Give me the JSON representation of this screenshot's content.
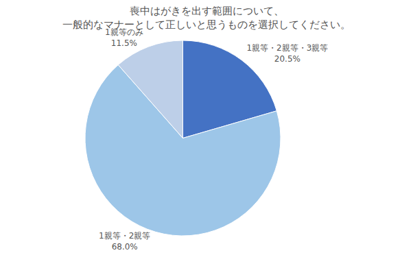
{
  "chart_data": {
    "type": "pie",
    "title": "喪中はがきを出す範囲について、",
    "subtitle": "一般的なマナーとして正しいと思うものを選択してください。",
    "categories": [
      "1親等・2親等・3親等",
      "1親等・2親等",
      "1親等のみ"
    ],
    "values": [
      20.5,
      68.0,
      11.5
    ],
    "value_labels": [
      "20.5%",
      "68.0%",
      "11.5%"
    ],
    "colors": [
      "#4472C4",
      "#9DC6E8",
      "#BDCFE8"
    ],
    "legend": false
  }
}
